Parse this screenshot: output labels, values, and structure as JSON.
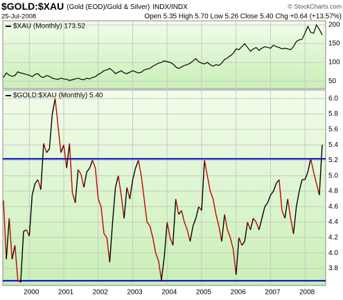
{
  "header": {
    "title": "$GOLD:$XAU",
    "subtitle": "(Gold (EOD)/Gold & Silver)",
    "exchange": "INDX/INDX",
    "source": "© StockCharts.com",
    "date": "25-Jul-2008",
    "quote": "Open 5.35 High 5.70 Low 5.26 Close 5.40 Chg +0.64 (+13.57%)"
  },
  "chart_data": [
    {
      "type": "line",
      "legend": "$XAU (Monthly) 173.52",
      "color": "#000000",
      "grid": true,
      "ylim": [
        30,
        211
      ],
      "yticks": [
        50,
        100,
        150,
        200
      ],
      "values": [
        60,
        72,
        66,
        63,
        65,
        75,
        72,
        70,
        68,
        66,
        62,
        68,
        70,
        62,
        60,
        65,
        63,
        58,
        56,
        55,
        58,
        56,
        55,
        52,
        54,
        56,
        58,
        55,
        54,
        58,
        56,
        60,
        62,
        68,
        72,
        78,
        80,
        84,
        78,
        70,
        74,
        78,
        72,
        70,
        74,
        78,
        75,
        72,
        74,
        80,
        82,
        84,
        90,
        94,
        98,
        100,
        104,
        102,
        100,
        96,
        88,
        84,
        88,
        92,
        94,
        98,
        104,
        110,
        102,
        98,
        96,
        100,
        94,
        90,
        94,
        92,
        98,
        108,
        112,
        118,
        124,
        136,
        134,
        142,
        150,
        140,
        130,
        136,
        140,
        132,
        138,
        142,
        140,
        138,
        146,
        142,
        140,
        136,
        138,
        136,
        134,
        142,
        156,
        160,
        162,
        178,
        196,
        180,
        178,
        200,
        188,
        173.52
      ]
    },
    {
      "type": "updown_line",
      "legend": "$GOLD:$XAU (Monthly) 5.40",
      "up_color": "#000000",
      "down_color": "#c00000",
      "grid": true,
      "ylim": [
        3.58,
        6.11
      ],
      "yticks": [
        3.8,
        {
          "value": 4,
          "label": "4.0"
        },
        4.2,
        4.4,
        4.6,
        4.8,
        {
          "value": 5,
          "label": "5.0"
        },
        5.2,
        5.4,
        5.6,
        5.8,
        {
          "value": 6,
          "label": "6.0"
        }
      ],
      "reference_lines": [
        5.22,
        3.64
      ],
      "reference_color": "#0000cc",
      "categories": [
        null,
        null,
        null,
        null,
        null,
        null,
        null,
        null,
        null,
        "2000",
        null,
        null,
        null,
        null,
        null,
        null,
        null,
        null,
        null,
        null,
        null,
        "2001",
        null,
        null,
        null,
        null,
        null,
        null,
        null,
        null,
        null,
        null,
        null,
        "2002",
        null,
        null,
        null,
        null,
        null,
        null,
        null,
        null,
        null,
        null,
        null,
        "2003",
        null,
        null,
        null,
        null,
        null,
        null,
        null,
        null,
        null,
        null,
        null,
        "2004",
        null,
        null,
        null,
        null,
        null,
        null,
        null,
        null,
        null,
        null,
        null,
        "2005",
        null,
        null,
        null,
        null,
        null,
        null,
        null,
        null,
        null,
        null,
        null,
        "2006",
        null,
        null,
        null,
        null,
        null,
        null,
        null,
        null,
        null,
        null,
        null,
        "2007",
        null,
        null,
        null,
        null,
        null,
        null,
        null,
        null,
        null,
        null,
        null,
        "2008",
        null,
        null,
        null,
        null,
        null,
        null
      ],
      "values": [
        4.68,
        3.92,
        4.45,
        3.92,
        4.1,
        3.65,
        3.62,
        4.28,
        4.3,
        4.22,
        4.75,
        4.9,
        4.95,
        4.82,
        5.42,
        5.3,
        5.35,
        5.8,
        6.0,
        5.65,
        5.3,
        5.4,
        5.1,
        5.42,
        4.78,
        4.65,
        5.08,
        5.02,
        4.85,
        5.05,
        5.1,
        5.2,
        5.1,
        4.7,
        4.6,
        4.25,
        4.2,
        3.88,
        4.4,
        4.85,
        5.0,
        4.75,
        4.45,
        4.85,
        4.7,
        4.95,
        5.1,
        5.2,
        5.0,
        4.7,
        4.4,
        4.35,
        4.2,
        4.0,
        3.9,
        3.65,
        3.95,
        4.4,
        4.2,
        4.1,
        4.7,
        4.5,
        4.55,
        4.4,
        4.3,
        4.15,
        4.35,
        4.45,
        4.6,
        4.55,
        5.2,
        5.0,
        4.8,
        4.7,
        4.5,
        4.35,
        4.15,
        4.5,
        4.3,
        4.2,
        4.05,
        3.72,
        4.2,
        4.1,
        4.15,
        4.4,
        4.3,
        4.45,
        4.4,
        4.3,
        4.45,
        4.6,
        4.65,
        4.75,
        4.8,
        4.9,
        4.95,
        4.55,
        4.45,
        4.7,
        4.45,
        4.25,
        4.6,
        4.8,
        4.95,
        4.95,
        5.05,
        5.22,
        5.05,
        4.9,
        4.75,
        5.4
      ]
    }
  ]
}
